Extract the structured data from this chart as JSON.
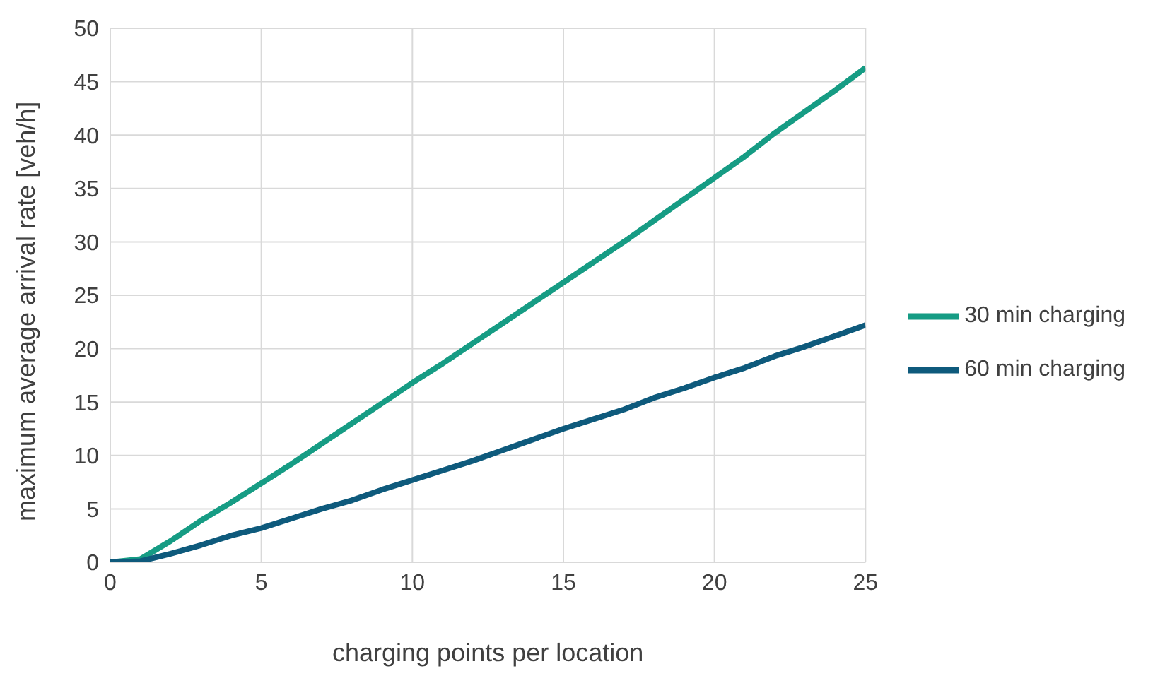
{
  "chart_data": {
    "type": "line",
    "xlabel": "charging points per location",
    "ylabel": "maximum average arrival rate [veh/h]",
    "x": [
      0,
      1,
      2,
      3,
      4,
      5,
      6,
      7,
      8,
      9,
      10,
      11,
      12,
      13,
      14,
      15,
      16,
      17,
      18,
      19,
      20,
      21,
      22,
      23,
      24,
      25
    ],
    "series": [
      {
        "name": "30 min charging",
        "color": "#169c84",
        "values": [
          0,
          0.3,
          2,
          3.9,
          5.6,
          7.4,
          9.2,
          11.1,
          13,
          14.9,
          16.8,
          18.6,
          20.5,
          22.4,
          24.3,
          26.2,
          28.1,
          30,
          32,
          34,
          36,
          38,
          40.2,
          42.2,
          44.2,
          46.3
        ]
      },
      {
        "name": "60 min charging",
        "color": "#0e5a7c",
        "values": [
          0,
          0.1,
          0.8,
          1.6,
          2.5,
          3.2,
          4.1,
          5,
          5.8,
          6.8,
          7.7,
          8.6,
          9.5,
          10.5,
          11.5,
          12.5,
          13.4,
          14.3,
          15.4,
          16.3,
          17.3,
          18.2,
          19.3,
          20.2,
          21.2,
          22.2
        ]
      }
    ],
    "xlim": [
      0,
      25
    ],
    "xticks": [
      0,
      5,
      10,
      15,
      20,
      25
    ],
    "ylim": [
      0,
      50
    ],
    "yticks": [
      0,
      5,
      10,
      15,
      20,
      25,
      30,
      35,
      40,
      45,
      50
    ],
    "grid": true,
    "legend": "right",
    "marker": "none",
    "line_style": "solid"
  }
}
